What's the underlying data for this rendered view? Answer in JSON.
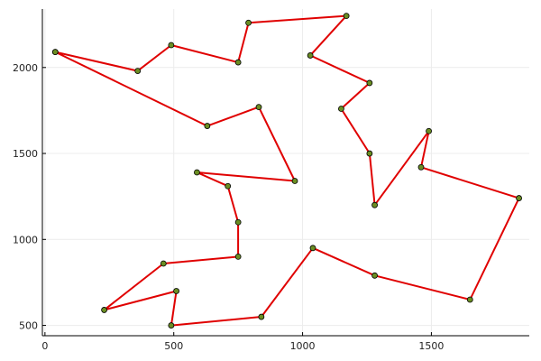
{
  "chart_data": {
    "type": "line",
    "title": "",
    "xlabel": "",
    "ylabel": "",
    "xlim": [
      -10,
      1880
    ],
    "ylim": [
      440,
      2340
    ],
    "xticks": [
      0,
      500,
      1000,
      1500
    ],
    "yticks": [
      500,
      1000,
      1500,
      2000
    ],
    "xtick_labels": [
      "0",
      "500",
      "1000",
      "1500"
    ],
    "ytick_labels": [
      "500",
      "1000",
      "1500",
      "2000"
    ],
    "grid": true,
    "legend": "none",
    "series": [
      {
        "line_color": "#e00000",
        "marker_color": "#6b8e23",
        "points": [
          [
            40,
            2090
          ],
          [
            360,
            1980
          ],
          [
            490,
            2130
          ],
          [
            750,
            2030
          ],
          [
            790,
            2260
          ],
          [
            1170,
            2300
          ],
          [
            1030,
            2070
          ],
          [
            1260,
            1910
          ],
          [
            1150,
            1760
          ],
          [
            1260,
            1500
          ],
          [
            1280,
            1200
          ],
          [
            1490,
            1630
          ],
          [
            1460,
            1420
          ],
          [
            1840,
            1240
          ],
          [
            1650,
            650
          ],
          [
            1280,
            790
          ],
          [
            1040,
            950
          ],
          [
            840,
            550
          ],
          [
            490,
            500
          ],
          [
            510,
            700
          ],
          [
            230,
            590
          ],
          [
            460,
            860
          ],
          [
            750,
            900
          ],
          [
            750,
            1100
          ],
          [
            710,
            1310
          ],
          [
            590,
            1390
          ],
          [
            970,
            1340
          ],
          [
            830,
            1770
          ],
          [
            630,
            1660
          ],
          [
            40,
            2090
          ]
        ]
      }
    ]
  }
}
